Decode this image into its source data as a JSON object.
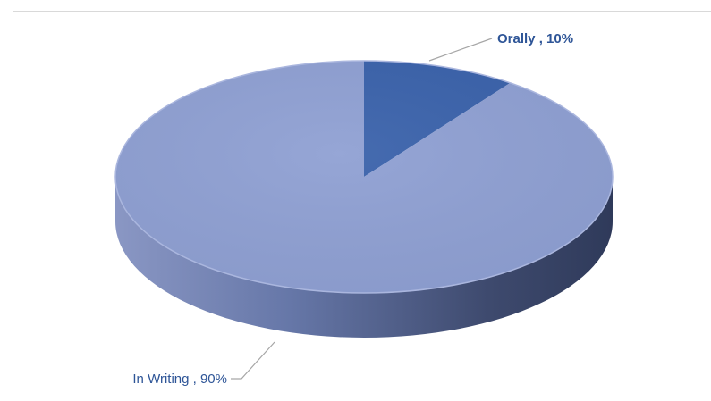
{
  "chart_data": {
    "type": "pie",
    "style": "3d",
    "title": "",
    "slices": [
      {
        "label": "Orally",
        "value": 10,
        "display": "Orally , 10%",
        "color": "#3a62ab"
      },
      {
        "label": "In Writing",
        "value": 90,
        "display": "In Writing , 90%",
        "color": "#8fa0d3"
      }
    ],
    "legend": "none",
    "data_labels": "outside with leader lines"
  }
}
